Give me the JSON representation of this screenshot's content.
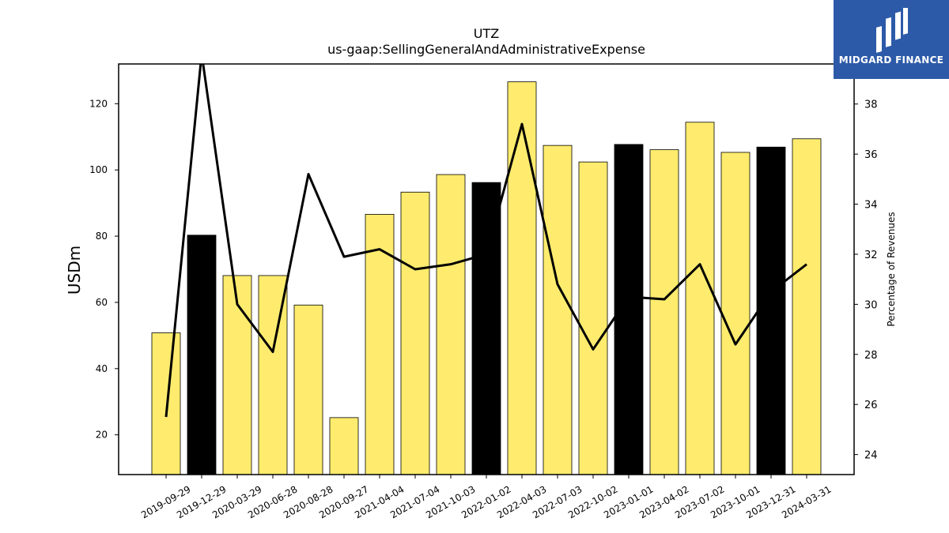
{
  "chart_data": {
    "type": "bar",
    "title": "UTZ",
    "subtitle": "us-gaap:SellingGeneralAndAdministrativeExpense",
    "ylabel": "USDm",
    "y2label": "Percentage of Revenues",
    "ylim": [
      8,
      132
    ],
    "y2lim": [
      23.2,
      39.6
    ],
    "yticks": [
      20,
      40,
      60,
      80,
      100,
      120
    ],
    "y2ticks": [
      24,
      26,
      28,
      30,
      32,
      34,
      36,
      38
    ],
    "categories": [
      "2019-09-29",
      "2019-12-29",
      "2020-03-29",
      "2020-06-28",
      "2020-08-28",
      "2020-09-27",
      "2021-04-04",
      "2021-07-04",
      "2021-10-03",
      "2022-01-02",
      "2022-04-03",
      "2022-07-03",
      "2022-10-02",
      "2023-01-01",
      "2023-04-02",
      "2023-07-02",
      "2023-10-01",
      "2023-12-31",
      "2024-03-31"
    ],
    "series": [
      {
        "type": "bar",
        "values": [
          50.8,
          80.3,
          68.1,
          68.1,
          59.2,
          25.2,
          86.6,
          93.3,
          98.6,
          96.2,
          126.6,
          107.4,
          102.4,
          107.7,
          106.1,
          114.4,
          105.3,
          106.9,
          109.4
        ],
        "highlight": [
          false,
          true,
          false,
          false,
          false,
          false,
          false,
          false,
          false,
          true,
          false,
          false,
          false,
          true,
          false,
          false,
          false,
          true,
          false
        ]
      },
      {
        "type": "line",
        "axis": "right",
        "values": [
          25.5,
          40.0,
          30.0,
          28.1,
          35.2,
          31.9,
          32.2,
          31.4,
          31.6,
          32.0,
          37.2,
          30.8,
          28.2,
          30.3,
          30.2,
          31.6,
          28.4,
          30.5,
          31.6
        ]
      }
    ],
    "colors": {
      "bar": "#ffec6e",
      "bar_highlight": "#000000",
      "line": "#000000"
    },
    "grid": false,
    "legend": "none"
  },
  "logo": {
    "text": "MIDGARD FINANCE"
  }
}
